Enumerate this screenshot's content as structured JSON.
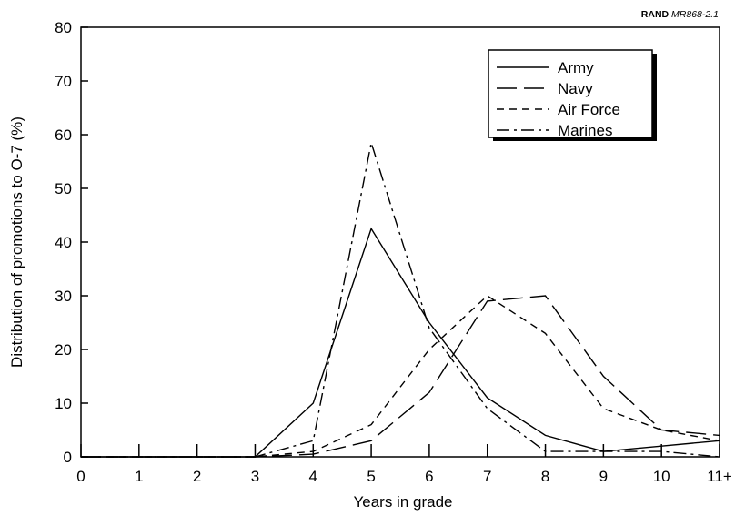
{
  "source_note": {
    "org": "RAND",
    "doc": "MR868-2.1"
  },
  "chart_data": {
    "type": "line",
    "title": "",
    "xlabel": "Years in grade",
    "ylabel": "Distribution of promotions to O-7 (%)",
    "categories": [
      "0",
      "1",
      "2",
      "3",
      "4",
      "5",
      "6",
      "7",
      "8",
      "9",
      "10",
      "11+"
    ],
    "yticks": [
      0,
      10,
      20,
      30,
      40,
      50,
      60,
      70,
      80
    ],
    "ylim": [
      0,
      80
    ],
    "grid": false,
    "legend_position": "top-right",
    "series": [
      {
        "name": "Army",
        "dash": "solid",
        "values": [
          0,
          0,
          0,
          0,
          10,
          42.5,
          25,
          11,
          4,
          1,
          2,
          3
        ]
      },
      {
        "name": "Navy",
        "dash": "long-dash",
        "values": [
          0,
          0,
          0,
          0,
          0.5,
          3,
          12,
          29,
          30,
          15,
          5,
          4
        ]
      },
      {
        "name": "Air Force",
        "dash": "short-dash",
        "values": [
          0,
          0,
          0,
          0,
          1,
          6,
          20,
          30,
          23,
          9,
          5,
          3
        ]
      },
      {
        "name": "Marines",
        "dash": "dash-dot",
        "values": [
          0,
          0,
          0,
          0,
          3,
          58.5,
          24,
          9,
          1,
          1,
          1,
          0
        ]
      }
    ]
  }
}
